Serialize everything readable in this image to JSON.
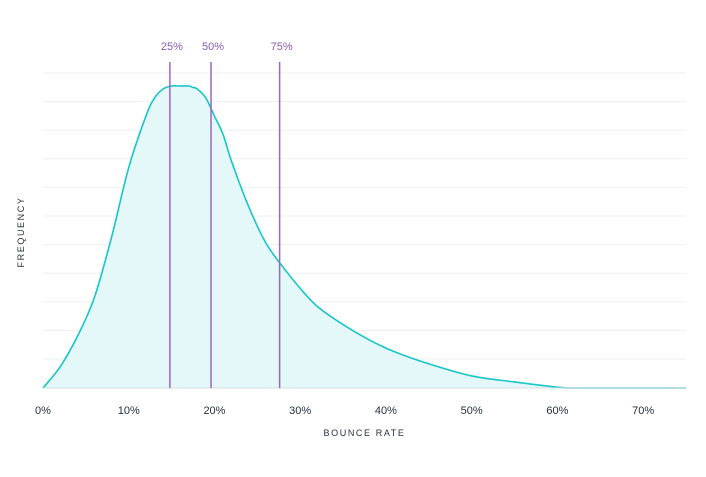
{
  "chart_data": {
    "type": "area",
    "xlabel": "BOUNCE RATE",
    "ylabel": "FREQUENCY",
    "xlim": [
      0,
      75
    ],
    "x_ticks": [
      0,
      10,
      20,
      30,
      40,
      50,
      60,
      70
    ],
    "x_tick_labels": [
      "0%",
      "10%",
      "20%",
      "30%",
      "40%",
      "50%",
      "60%",
      "70%"
    ],
    "ylim": [
      0,
      100
    ],
    "grid": true,
    "series": [
      {
        "x": [
          0,
          2,
          4,
          6,
          8,
          10,
          12,
          13,
          14,
          15,
          16,
          17,
          17.5,
          18,
          19,
          20,
          21,
          22,
          24,
          26,
          28,
          30,
          32,
          35,
          38,
          41,
          45,
          50,
          55,
          61,
          65,
          70,
          75
        ],
        "y": [
          0,
          7,
          17,
          30,
          50,
          73,
          90,
          96,
          99,
          100,
          100,
          100,
          99.5,
          99,
          96,
          90,
          84,
          75,
          60,
          48,
          40,
          33,
          27,
          21,
          16,
          12,
          8,
          4,
          2,
          0,
          0,
          0,
          0
        ]
      }
    ],
    "percentiles": [
      {
        "label": "25%",
        "x": 14.8
      },
      {
        "label": "50%",
        "x": 19.6
      },
      {
        "label": "75%",
        "x": 27.6
      }
    ],
    "colors": {
      "line": "#17c6c6",
      "fill": "#e4f7f9",
      "percentile": "#9b67c6",
      "percentile_label": "#8a5ab6",
      "grid": "#eef0f2",
      "axis": "#d7dde3"
    }
  }
}
